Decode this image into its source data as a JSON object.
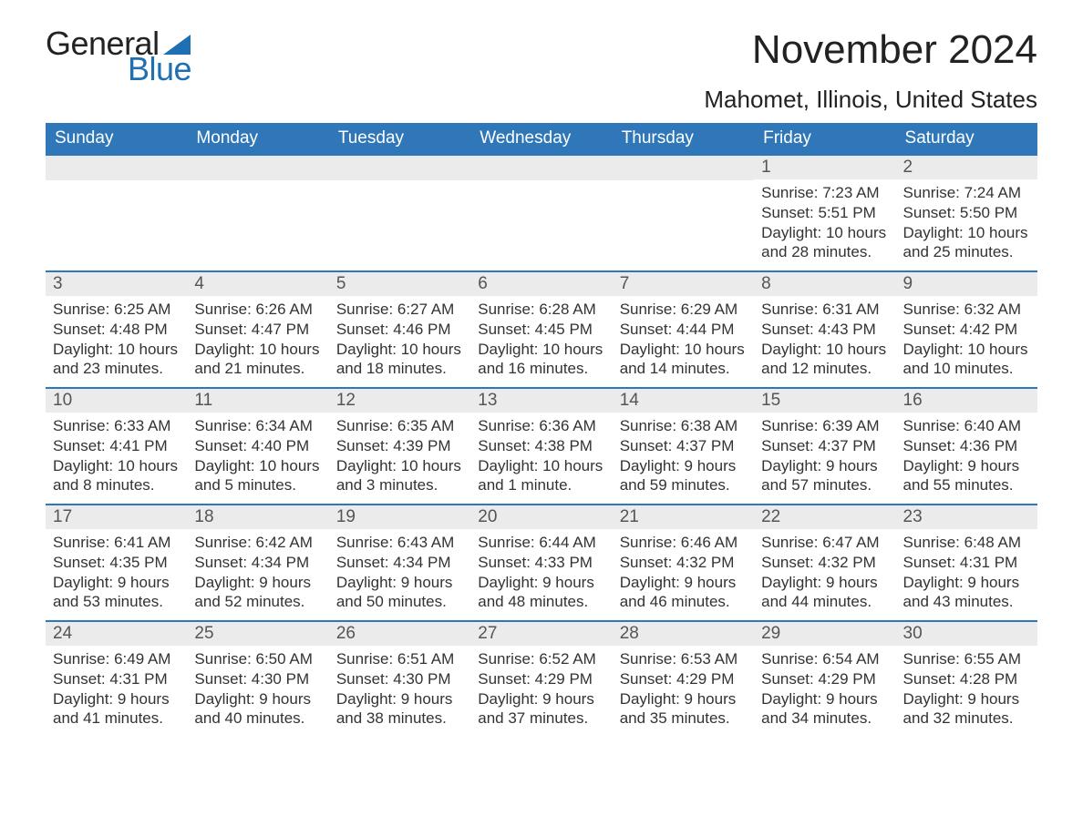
{
  "brand": {
    "line1": "General",
    "line2": "Blue",
    "accent_color": "#1f6fb3"
  },
  "title": "November 2024",
  "location": "Mahomet, Illinois, United States",
  "colors": {
    "header_bg": "#2f77b8",
    "header_text": "#ffffff",
    "daynum_bg": "#ebebeb",
    "row_divider": "#2f77b8",
    "body_text": "#333333",
    "page_bg": "#ffffff"
  },
  "weekdays": [
    "Sunday",
    "Monday",
    "Tuesday",
    "Wednesday",
    "Thursday",
    "Friday",
    "Saturday"
  ],
  "weeks": [
    [
      {
        "empty": true
      },
      {
        "empty": true
      },
      {
        "empty": true
      },
      {
        "empty": true
      },
      {
        "empty": true
      },
      {
        "n": "1",
        "sunrise": "7:23 AM",
        "sunset": "5:51 PM",
        "daylight": "10 hours and 28 minutes."
      },
      {
        "n": "2",
        "sunrise": "7:24 AM",
        "sunset": "5:50 PM",
        "daylight": "10 hours and 25 minutes."
      }
    ],
    [
      {
        "n": "3",
        "sunrise": "6:25 AM",
        "sunset": "4:48 PM",
        "daylight": "10 hours and 23 minutes."
      },
      {
        "n": "4",
        "sunrise": "6:26 AM",
        "sunset": "4:47 PM",
        "daylight": "10 hours and 21 minutes."
      },
      {
        "n": "5",
        "sunrise": "6:27 AM",
        "sunset": "4:46 PM",
        "daylight": "10 hours and 18 minutes."
      },
      {
        "n": "6",
        "sunrise": "6:28 AM",
        "sunset": "4:45 PM",
        "daylight": "10 hours and 16 minutes."
      },
      {
        "n": "7",
        "sunrise": "6:29 AM",
        "sunset": "4:44 PM",
        "daylight": "10 hours and 14 minutes."
      },
      {
        "n": "8",
        "sunrise": "6:31 AM",
        "sunset": "4:43 PM",
        "daylight": "10 hours and 12 minutes."
      },
      {
        "n": "9",
        "sunrise": "6:32 AM",
        "sunset": "4:42 PM",
        "daylight": "10 hours and 10 minutes."
      }
    ],
    [
      {
        "n": "10",
        "sunrise": "6:33 AM",
        "sunset": "4:41 PM",
        "daylight": "10 hours and 8 minutes."
      },
      {
        "n": "11",
        "sunrise": "6:34 AM",
        "sunset": "4:40 PM",
        "daylight": "10 hours and 5 minutes."
      },
      {
        "n": "12",
        "sunrise": "6:35 AM",
        "sunset": "4:39 PM",
        "daylight": "10 hours and 3 minutes."
      },
      {
        "n": "13",
        "sunrise": "6:36 AM",
        "sunset": "4:38 PM",
        "daylight": "10 hours and 1 minute."
      },
      {
        "n": "14",
        "sunrise": "6:38 AM",
        "sunset": "4:37 PM",
        "daylight": "9 hours and 59 minutes."
      },
      {
        "n": "15",
        "sunrise": "6:39 AM",
        "sunset": "4:37 PM",
        "daylight": "9 hours and 57 minutes."
      },
      {
        "n": "16",
        "sunrise": "6:40 AM",
        "sunset": "4:36 PM",
        "daylight": "9 hours and 55 minutes."
      }
    ],
    [
      {
        "n": "17",
        "sunrise": "6:41 AM",
        "sunset": "4:35 PM",
        "daylight": "9 hours and 53 minutes."
      },
      {
        "n": "18",
        "sunrise": "6:42 AM",
        "sunset": "4:34 PM",
        "daylight": "9 hours and 52 minutes."
      },
      {
        "n": "19",
        "sunrise": "6:43 AM",
        "sunset": "4:34 PM",
        "daylight": "9 hours and 50 minutes."
      },
      {
        "n": "20",
        "sunrise": "6:44 AM",
        "sunset": "4:33 PM",
        "daylight": "9 hours and 48 minutes."
      },
      {
        "n": "21",
        "sunrise": "6:46 AM",
        "sunset": "4:32 PM",
        "daylight": "9 hours and 46 minutes."
      },
      {
        "n": "22",
        "sunrise": "6:47 AM",
        "sunset": "4:32 PM",
        "daylight": "9 hours and 44 minutes."
      },
      {
        "n": "23",
        "sunrise": "6:48 AM",
        "sunset": "4:31 PM",
        "daylight": "9 hours and 43 minutes."
      }
    ],
    [
      {
        "n": "24",
        "sunrise": "6:49 AM",
        "sunset": "4:31 PM",
        "daylight": "9 hours and 41 minutes."
      },
      {
        "n": "25",
        "sunrise": "6:50 AM",
        "sunset": "4:30 PM",
        "daylight": "9 hours and 40 minutes."
      },
      {
        "n": "26",
        "sunrise": "6:51 AM",
        "sunset": "4:30 PM",
        "daylight": "9 hours and 38 minutes."
      },
      {
        "n": "27",
        "sunrise": "6:52 AM",
        "sunset": "4:29 PM",
        "daylight": "9 hours and 37 minutes."
      },
      {
        "n": "28",
        "sunrise": "6:53 AM",
        "sunset": "4:29 PM",
        "daylight": "9 hours and 35 minutes."
      },
      {
        "n": "29",
        "sunrise": "6:54 AM",
        "sunset": "4:29 PM",
        "daylight": "9 hours and 34 minutes."
      },
      {
        "n": "30",
        "sunrise": "6:55 AM",
        "sunset": "4:28 PM",
        "daylight": "9 hours and 32 minutes."
      }
    ]
  ],
  "labels": {
    "sunrise": "Sunrise: ",
    "sunset": "Sunset: ",
    "daylight": "Daylight: "
  }
}
